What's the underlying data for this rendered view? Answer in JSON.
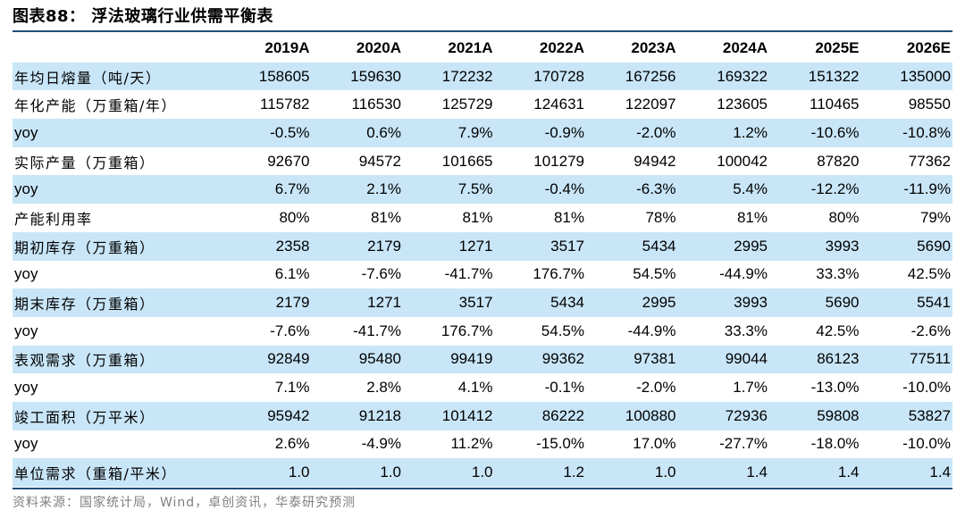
{
  "title": "图表88： 浮法玻璃行业供需平衡表",
  "columns": [
    "2019A",
    "2020A",
    "2021A",
    "2022A",
    "2023A",
    "2024A",
    "2025E",
    "2026E"
  ],
  "rows": [
    {
      "label": "年均日熔量（吨/天）",
      "shade": true,
      "latin": false,
      "values": [
        "158605",
        "159630",
        "172232",
        "170728",
        "167256",
        "169322",
        "151322",
        "135000"
      ]
    },
    {
      "label": "年化产能（万重箱/年）",
      "shade": false,
      "latin": false,
      "values": [
        "115782",
        "116530",
        "125729",
        "124631",
        "122097",
        "123605",
        "110465",
        "98550"
      ]
    },
    {
      "label": "yoy",
      "shade": true,
      "latin": true,
      "values": [
        "-0.5%",
        "0.6%",
        "7.9%",
        "-0.9%",
        "-2.0%",
        "1.2%",
        "-10.6%",
        "-10.8%"
      ]
    },
    {
      "label": "实际产量（万重箱）",
      "shade": false,
      "latin": false,
      "values": [
        "92670",
        "94572",
        "101665",
        "101279",
        "94942",
        "100042",
        "87820",
        "77362"
      ]
    },
    {
      "label": "yoy",
      "shade": true,
      "latin": true,
      "values": [
        "6.7%",
        "2.1%",
        "7.5%",
        "-0.4%",
        "-6.3%",
        "5.4%",
        "-12.2%",
        "-11.9%"
      ]
    },
    {
      "label": "产能利用率",
      "shade": false,
      "latin": false,
      "values": [
        "80%",
        "81%",
        "81%",
        "81%",
        "78%",
        "81%",
        "80%",
        "79%"
      ]
    },
    {
      "label": "期初库存（万重箱）",
      "shade": true,
      "latin": false,
      "values": [
        "2358",
        "2179",
        "1271",
        "3517",
        "5434",
        "2995",
        "3993",
        "5690"
      ]
    },
    {
      "label": "yoy",
      "shade": false,
      "latin": true,
      "values": [
        "6.1%",
        "-7.6%",
        "-41.7%",
        "176.7%",
        "54.5%",
        "-44.9%",
        "33.3%",
        "42.5%"
      ]
    },
    {
      "label": "期末库存（万重箱）",
      "shade": true,
      "latin": false,
      "values": [
        "2179",
        "1271",
        "3517",
        "5434",
        "2995",
        "3993",
        "5690",
        "5541"
      ]
    },
    {
      "label": "yoy",
      "shade": false,
      "latin": true,
      "values": [
        "-7.6%",
        "-41.7%",
        "176.7%",
        "54.5%",
        "-44.9%",
        "33.3%",
        "42.5%",
        "-2.6%"
      ]
    },
    {
      "label": "表观需求（万重箱）",
      "shade": true,
      "latin": false,
      "values": [
        "92849",
        "95480",
        "99419",
        "99362",
        "97381",
        "99044",
        "86123",
        "77511"
      ]
    },
    {
      "label": "yoy",
      "shade": false,
      "latin": true,
      "values": [
        "7.1%",
        "2.8%",
        "4.1%",
        "-0.1%",
        "-2.0%",
        "1.7%",
        "-13.0%",
        "-10.0%"
      ]
    },
    {
      "label": "竣工面积（万平米）",
      "shade": true,
      "latin": false,
      "values": [
        "95942",
        "91218",
        "101412",
        "86222",
        "100880",
        "72936",
        "59808",
        "53827"
      ]
    },
    {
      "label": "yoy",
      "shade": false,
      "latin": true,
      "values": [
        "2.6%",
        "-4.9%",
        "11.2%",
        "-15.0%",
        "17.0%",
        "-27.7%",
        "-18.0%",
        "-10.0%"
      ]
    },
    {
      "label": "单位需求（重箱/平米）",
      "shade": true,
      "latin": false,
      "values": [
        "1.0",
        "1.0",
        "1.0",
        "1.2",
        "1.0",
        "1.4",
        "1.4",
        "1.4"
      ]
    }
  ],
  "source": "资料来源：国家统计局，Wind，卓创资讯，华泰研究预测",
  "colors": {
    "row_shade": "#c9e6f8",
    "rule": "#1f4e79",
    "source_text": "#7f7f7f"
  }
}
